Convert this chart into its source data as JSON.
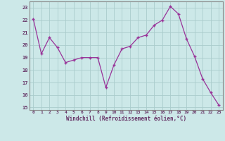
{
  "x": [
    0,
    1,
    2,
    3,
    4,
    5,
    6,
    7,
    8,
    9,
    10,
    11,
    12,
    13,
    14,
    15,
    16,
    17,
    18,
    19,
    20,
    21,
    22,
    23
  ],
  "y": [
    22.1,
    19.3,
    20.6,
    19.8,
    18.6,
    18.8,
    19.0,
    19.0,
    19.0,
    16.6,
    18.4,
    19.7,
    19.9,
    20.6,
    20.8,
    21.6,
    22.0,
    23.1,
    22.5,
    20.5,
    19.1,
    17.3,
    16.2,
    15.2
  ],
  "ylim": [
    14.8,
    23.5
  ],
  "yticks": [
    15,
    16,
    17,
    18,
    19,
    20,
    21,
    22,
    23
  ],
  "xticks": [
    0,
    1,
    2,
    3,
    4,
    5,
    6,
    7,
    8,
    9,
    10,
    11,
    12,
    13,
    14,
    15,
    16,
    17,
    18,
    19,
    20,
    21,
    22,
    23
  ],
  "xlabel": "Windchill (Refroidissement éolien,°C)",
  "line_color": "#993399",
  "marker_color": "#993399",
  "background_color": "#cce8e8",
  "grid_color": "#aacccc",
  "tick_label_color": "#663366",
  "xlabel_color": "#663366",
  "figsize": [
    3.2,
    2.0
  ],
  "dpi": 100
}
